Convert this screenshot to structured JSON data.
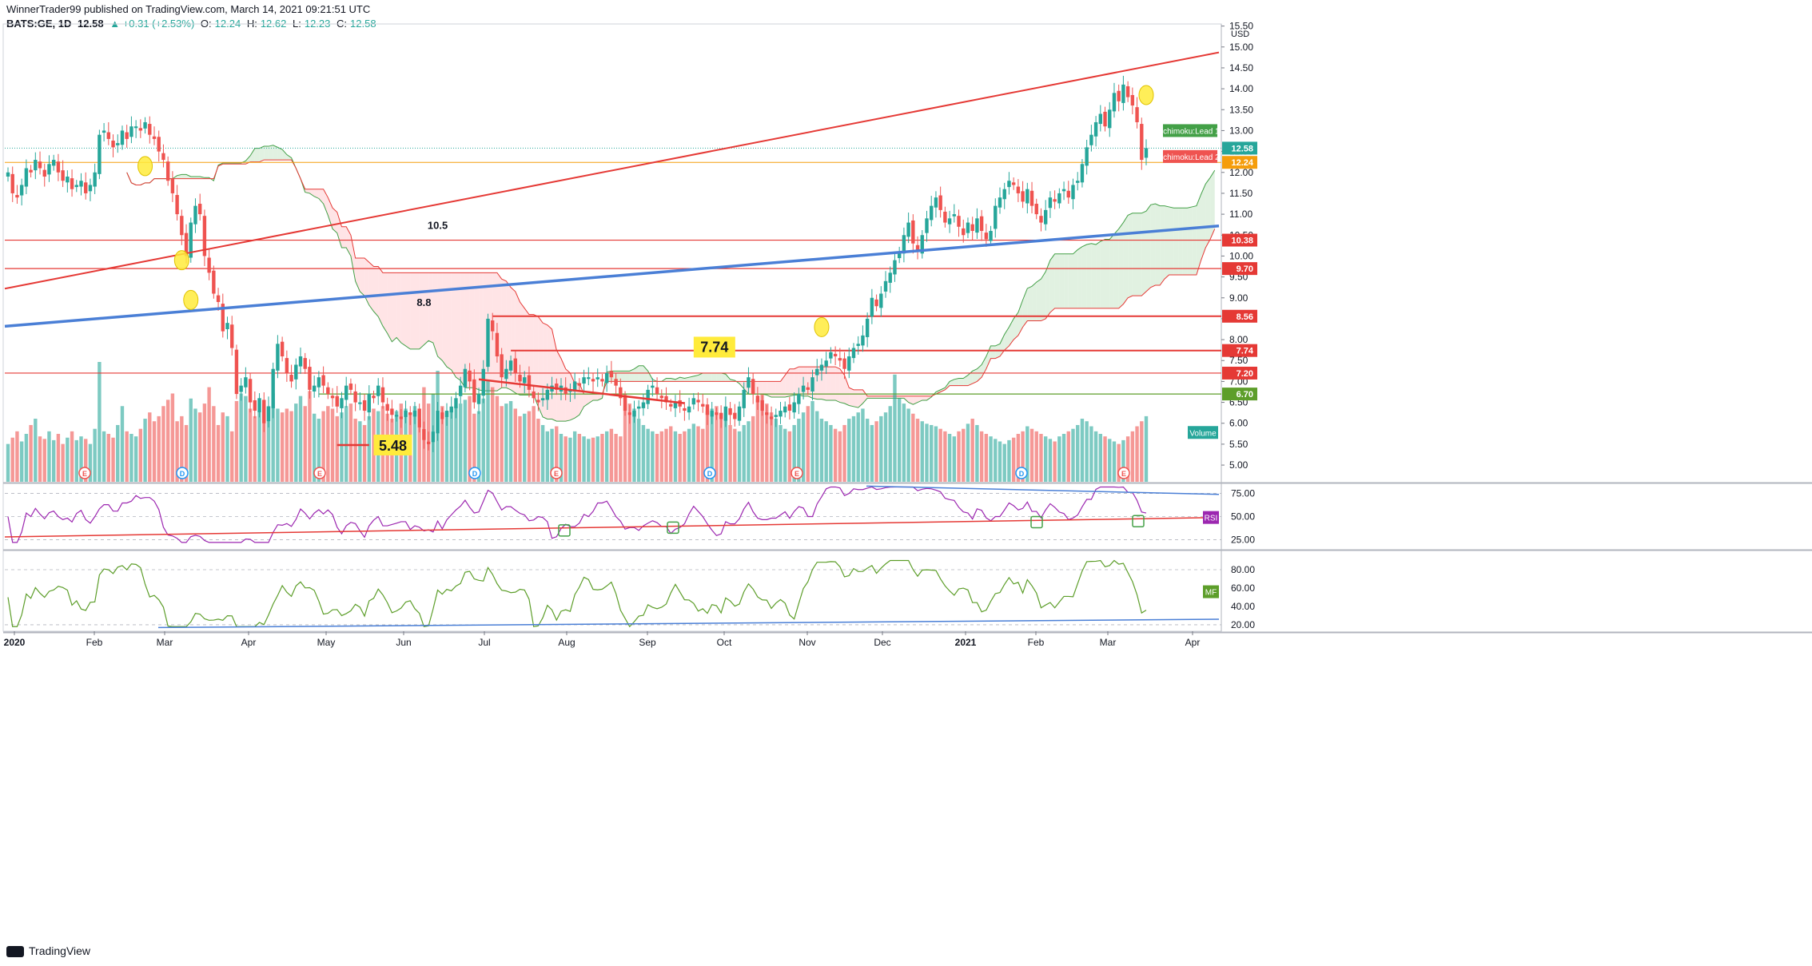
{
  "header": {
    "publisher": "WinnerTrader99 published on TradingView.com, March 14, 2021 09:21:51 UTC",
    "symbol": "BATS:GE, 1D",
    "last": "12.58",
    "change": "▲ +0.31 (+2.53%)",
    "open_label": "O:",
    "open": "12.24",
    "high_label": "H:",
    "high": "12.62",
    "low_label": "L:",
    "low": "12.23",
    "close_label": "C:",
    "close": "12.58"
  },
  "footer": {
    "brand": "TradingView"
  },
  "colors": {
    "up": "#26a69a",
    "down": "#ef5350",
    "cloud_green": "#c8e6c9",
    "cloud_red": "#ffcdd2",
    "rsi": "#9c27b0",
    "mf": "#5d9e2a",
    "trend_red": "#e53935",
    "trend_blue": "#4a7fd6"
  },
  "chart_data": [
    {
      "type": "candlestick",
      "title": "BATS:GE, 1D",
      "currency": "USD",
      "x_ticks": [
        "2020",
        "Feb",
        "Mar",
        "Apr",
        "May",
        "Jun",
        "Jul",
        "Aug",
        "Sep",
        "Oct",
        "Nov",
        "Dec",
        "2021",
        "Feb",
        "Mar",
        "Apr"
      ],
      "y_ticks": [
        "15.50",
        "15.00",
        "14.50",
        "14.00",
        "13.50",
        "13.00",
        "12.50",
        "12.00",
        "11.50",
        "11.00",
        "10.50",
        "10.00",
        "9.50",
        "9.00",
        "8.50",
        "8.00",
        "7.50",
        "7.00",
        "6.50",
        "6.00",
        "5.50",
        "5.00"
      ],
      "ylim": [
        4.6,
        15.55
      ],
      "closes": [
        12.0,
        11.5,
        11.4,
        11.7,
        12.1,
        12.0,
        12.3,
        12.1,
        11.9,
        12.2,
        12.3,
        12.0,
        11.8,
        11.9,
        11.6,
        11.7,
        11.8,
        11.5,
        11.7,
        12.0,
        12.9,
        13.0,
        12.8,
        12.6,
        12.7,
        13.0,
        12.8,
        13.1,
        13.1,
        13.0,
        13.2,
        12.9,
        12.8,
        12.5,
        12.3,
        11.8,
        11.5,
        11.0,
        10.5,
        10.0,
        10.8,
        11.2,
        11.0,
        10.0,
        9.6,
        9.1,
        8.9,
        8.2,
        8.4,
        7.8,
        6.7,
        6.9,
        7.1,
        6.5,
        6.3,
        6.6,
        6.0,
        6.4,
        7.3,
        7.9,
        7.6,
        7.2,
        7.0,
        7.4,
        7.6,
        7.3,
        6.8,
        6.9,
        7.1,
        6.9,
        6.7,
        6.6,
        6.4,
        6.6,
        6.9,
        6.8,
        6.5,
        6.5,
        6.3,
        6.7,
        6.6,
        6.9,
        6.5,
        6.3,
        6.2,
        6.2,
        6.1,
        6.3,
        6.2,
        6.3,
        5.9,
        5.6,
        5.5,
        5.8,
        6.3,
        6.1,
        6.3,
        6.4,
        6.6,
        6.9,
        7.3,
        7.0,
        6.5,
        6.7,
        7.3,
        8.5,
        8.2,
        7.6,
        7.1,
        7.3,
        7.5,
        7.2,
        7.0,
        7.1,
        6.8,
        6.6,
        6.5,
        6.6,
        6.8,
        6.9,
        6.8,
        6.9,
        6.7,
        6.8,
        7.0,
        6.9,
        7.1,
        7.1,
        7.0,
        7.1,
        7.0,
        7.2,
        7.1,
        6.9,
        6.6,
        6.3,
        6.2,
        6.3,
        6.4,
        6.5,
        6.8,
        6.9,
        6.7,
        6.6,
        6.5,
        6.4,
        6.5,
        6.4,
        6.3,
        6.4,
        6.6,
        6.5,
        6.4,
        6.2,
        6.3,
        6.2,
        6.1,
        6.4,
        6.2,
        6.1,
        6.4,
        6.8,
        7.1,
        6.7,
        6.5,
        6.3,
        6.2,
        6.1,
        6.2,
        6.3,
        6.4,
        6.3,
        6.5,
        6.7,
        6.9,
        6.8,
        7.1,
        7.3,
        7.4,
        7.5,
        7.7,
        7.6,
        7.5,
        7.3,
        7.6,
        7.8,
        7.9,
        8.1,
        8.5,
        9.0,
        8.8,
        9.1,
        9.4,
        9.6,
        9.9,
        10.1,
        10.5,
        10.8,
        10.3,
        10.1,
        10.5,
        10.9,
        11.2,
        11.4,
        11.1,
        10.8,
        10.9,
        11.0,
        10.7,
        10.5,
        10.8,
        10.6,
        10.9,
        10.6,
        10.4,
        10.6,
        11.2,
        11.4,
        11.6,
        11.8,
        11.7,
        11.5,
        11.3,
        11.6,
        11.2,
        11.0,
        10.8,
        11.1,
        11.4,
        11.3,
        11.5,
        11.6,
        11.4,
        11.7,
        11.8,
        12.2,
        12.6,
        12.9,
        13.2,
        13.4,
        13.1,
        13.5,
        13.9,
        13.7,
        14.1,
        13.8,
        13.6,
        13.2,
        12.3,
        12.58
      ],
      "volume_label": "Volume",
      "volumes": [
        30,
        35,
        40,
        32,
        38,
        45,
        50,
        36,
        34,
        40,
        33,
        38,
        30,
        35,
        40,
        33,
        36,
        34,
        30,
        42,
        95,
        40,
        38,
        35,
        45,
        60,
        40,
        38,
        36,
        42,
        50,
        55,
        48,
        52,
        60,
        65,
        70,
        48,
        52,
        45,
        66,
        58,
        55,
        62,
        75,
        60,
        45,
        55,
        52,
        40,
        64,
        70,
        68,
        58,
        52,
        55,
        62,
        60,
        70,
        58,
        55,
        58,
        56,
        62,
        68,
        60,
        72,
        54,
        50,
        56,
        60,
        58,
        52,
        55,
        60,
        62,
        50,
        48,
        45,
        52,
        58,
        56,
        60,
        54,
        50,
        56,
        62,
        58,
        55,
        60,
        50,
        75,
        62,
        70,
        88,
        60,
        55,
        58,
        60,
        62,
        65,
        68,
        54,
        56,
        66,
        80,
        75,
        68,
        60,
        62,
        64,
        58,
        52,
        54,
        56,
        60,
        50,
        45,
        40,
        42,
        44,
        38,
        36,
        35,
        40,
        38,
        36,
        34,
        35,
        36,
        38,
        40,
        42,
        38,
        36,
        70,
        62,
        58,
        50,
        45,
        42,
        40,
        38,
        40,
        42,
        44,
        40,
        38,
        40,
        42,
        46,
        44,
        42,
        56,
        58,
        60,
        54,
        50,
        45,
        42,
        40,
        45,
        48,
        52,
        66,
        70,
        62,
        55,
        50,
        45,
        42,
        40,
        45,
        50,
        55,
        60,
        64,
        56,
        50,
        48,
        45,
        42,
        40,
        45,
        50,
        52,
        55,
        58,
        50,
        45,
        48,
        52,
        55,
        60,
        85,
        66,
        62,
        58,
        54,
        50,
        48,
        46,
        45,
        44,
        42,
        40,
        38,
        36,
        40,
        42,
        46,
        50,
        45,
        40,
        38,
        36,
        34,
        32,
        30,
        33,
        35,
        38,
        40,
        44,
        42,
        40,
        38,
        36,
        34,
        32,
        36,
        38,
        40,
        42,
        45,
        50,
        48,
        44,
        40,
        38,
        36,
        34,
        32,
        30,
        33,
        36,
        40,
        44,
        48,
        52,
        55,
        60,
        65,
        58,
        55,
        45,
        48,
        85,
        58
      ],
      "annotations": [
        "10.5",
        "8.8",
        "7.74",
        "5.48"
      ],
      "price_lines": [
        {
          "value": 10.38,
          "label": "10.38",
          "color": "#e53935"
        },
        {
          "value": 9.7,
          "label": "9.70",
          "color": "#e53935"
        },
        {
          "value": 8.56,
          "label": "8.56",
          "color": "#e53935"
        },
        {
          "value": 7.74,
          "label": "7.74",
          "color": "#e53935"
        },
        {
          "value": 7.2,
          "label": "7.20",
          "color": "#e53935"
        },
        {
          "value": 6.7,
          "label": "6.70",
          "color": "#5d9e2a"
        },
        {
          "value": 12.24,
          "label": "12.24",
          "color": "#f59d0b"
        },
        {
          "value": 12.58,
          "label": "12.58",
          "color": "#26a69a"
        }
      ],
      "ichimoku_labels": [
        "Ichimoku:Lead 1",
        "Ichimoku:Lead 2"
      ],
      "event_markers": [
        "E",
        "D",
        "E",
        "D",
        "E",
        "D",
        "E",
        "D",
        "E",
        "D"
      ]
    },
    {
      "type": "line",
      "name": "RSI",
      "y_ticks": [
        "75.00",
        "50.00",
        "25.00"
      ],
      "ylim": [
        15,
        85
      ]
    },
    {
      "type": "line",
      "name": "MF",
      "y_ticks": [
        "80.00",
        "60.00",
        "40.00",
        "20.00"
      ],
      "ylim": [
        13,
        100
      ]
    }
  ]
}
